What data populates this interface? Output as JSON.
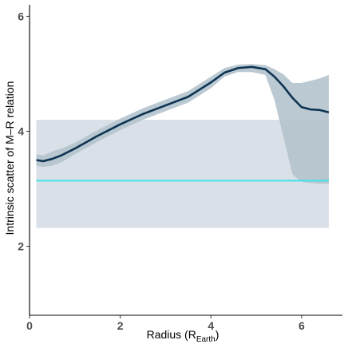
{
  "chart_data": {
    "type": "line",
    "xlabel": {
      "main": "Radius (R",
      "sub": "Earth",
      "close": ")"
    },
    "ylabel": "Intrinsic scatter of M–R relation",
    "xlim": [
      0,
      6.9
    ],
    "ylim": [
      0.8,
      6.2
    ],
    "x_ticks": [
      0,
      2,
      4,
      6
    ],
    "y_ticks": [
      2,
      4,
      6
    ],
    "grid": false,
    "legend": "none",
    "series": [
      {
        "x": [
          0.15,
          0.3,
          0.5,
          0.7,
          1.0,
          1.5,
          2.0,
          2.5,
          3.0,
          3.5,
          4.0,
          4.3,
          4.6,
          4.9,
          5.2,
          5.4,
          5.6,
          5.8,
          6.0,
          6.2,
          6.4,
          6.6
        ],
        "y": [
          3.5,
          3.48,
          3.52,
          3.58,
          3.7,
          3.92,
          4.12,
          4.3,
          4.45,
          4.6,
          4.85,
          5.02,
          5.1,
          5.12,
          5.08,
          4.95,
          4.78,
          4.58,
          4.42,
          4.38,
          4.37,
          4.33
        ],
        "lower": [
          3.4,
          3.38,
          3.4,
          3.46,
          3.6,
          3.82,
          4.02,
          4.2,
          4.35,
          4.5,
          4.75,
          4.95,
          5.03,
          5.03,
          4.98,
          4.55,
          3.9,
          3.25,
          3.12,
          3.1,
          3.09,
          3.09
        ],
        "upper": [
          3.6,
          3.58,
          3.65,
          3.7,
          3.8,
          4.02,
          4.22,
          4.4,
          4.55,
          4.7,
          4.95,
          5.1,
          5.16,
          5.17,
          5.15,
          5.08,
          4.99,
          4.84,
          4.84,
          4.88,
          4.92,
          4.98
        ],
        "color": "#0d3452",
        "band_color": "#b4c3cd"
      }
    ],
    "reference_line": {
      "y": 3.14,
      "x_range": [
        0.15,
        6.6
      ],
      "color": "#3fe3ea"
    },
    "reference_band": {
      "y_range": [
        2.32,
        4.2
      ],
      "x_range": [
        0.15,
        6.6
      ],
      "color": "#d9e0e7"
    }
  }
}
